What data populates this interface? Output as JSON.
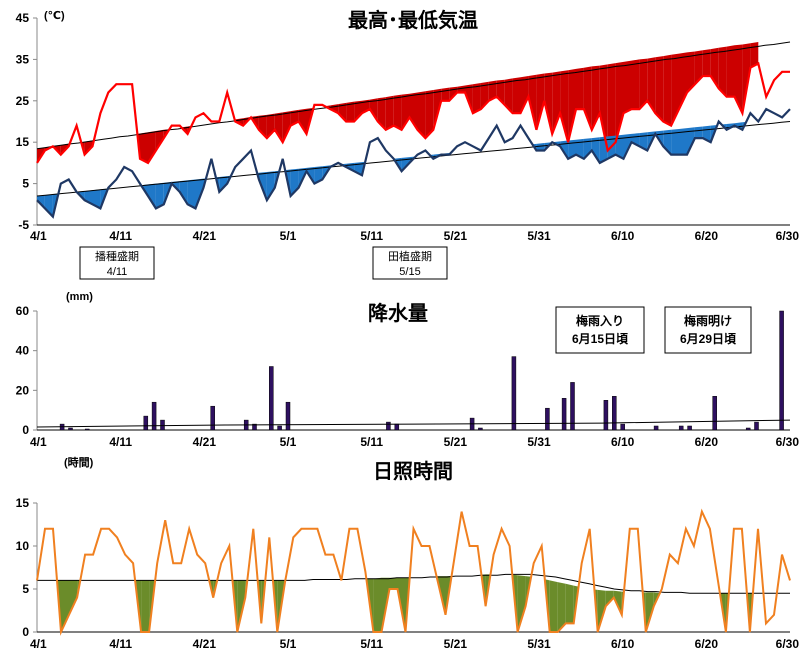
{
  "chart_data": [
    {
      "id": "temperature",
      "type": "line",
      "title": "最高･最低気温",
      "unit": "(℃)",
      "ylim": [
        -5,
        45
      ],
      "yticks": [
        -5,
        5,
        15,
        25,
        35,
        45
      ],
      "x_tick_labels": [
        "4/1",
        "4/11",
        "4/21",
        "5/1",
        "5/11",
        "5/21",
        "5/31",
        "6/10",
        "6/20",
        "6/30"
      ],
      "series": [
        {
          "color": "#ff0000",
          "values": [
            10,
            13,
            14,
            12,
            14,
            19,
            12,
            14,
            22,
            27,
            29,
            29,
            29,
            11,
            10,
            13,
            16,
            19,
            19,
            17,
            21,
            22,
            20,
            20,
            27,
            20,
            19,
            21,
            18,
            16,
            18,
            15,
            19,
            20,
            17,
            24,
            24,
            23,
            22,
            20,
            20,
            22,
            23,
            20,
            18,
            19,
            18,
            21,
            18,
            16,
            18,
            25,
            25,
            27,
            27,
            22,
            23,
            25,
            26,
            24,
            22,
            22,
            26,
            18,
            25,
            17,
            22,
            15,
            23,
            23,
            18,
            22,
            13,
            15,
            22,
            23,
            23,
            25,
            22,
            20,
            19,
            23,
            27,
            29,
            31,
            31,
            28,
            26,
            26,
            22,
            33,
            34,
            26,
            30,
            32,
            32
          ]
        },
        {
          "color": "#1f3864",
          "values": [
            1,
            -1,
            -3,
            5,
            6,
            3,
            1,
            0,
            -1,
            4,
            6,
            9,
            8,
            5,
            2,
            -1,
            0,
            5,
            3,
            0,
            -1,
            4,
            11,
            3,
            5,
            9,
            11,
            13,
            6,
            1,
            4,
            11,
            2,
            4,
            8,
            5,
            6,
            9,
            10,
            9,
            8,
            7,
            15,
            16,
            13,
            11,
            8,
            10,
            12,
            13,
            11,
            12,
            12,
            14,
            15,
            14,
            13,
            16,
            19,
            15,
            16,
            19,
            16,
            13,
            13,
            15,
            14,
            11,
            12,
            11,
            13,
            10,
            11,
            12,
            11,
            15,
            14,
            13,
            17,
            14,
            12,
            12,
            12,
            16,
            16,
            15,
            20,
            18,
            19,
            18,
            22,
            20,
            23,
            22,
            21,
            23
          ]
        },
        {
          "color": "#000000",
          "values": [
            13.4,
            13.7,
            14.0,
            14.3,
            14.6,
            14.8,
            15.1,
            15.4,
            15.7,
            16.0,
            16.3,
            16.5,
            16.8,
            17.1,
            17.4,
            17.7,
            18.0,
            18.2,
            18.5,
            18.8,
            19.1,
            19.4,
            19.7,
            19.9,
            20.2,
            20.5,
            20.8,
            21.1,
            21.4,
            21.6,
            21.9,
            22.2,
            22.5,
            22.8,
            23.1,
            23.3,
            23.6,
            23.9,
            24.2,
            24.5,
            24.8,
            25.0,
            25.3,
            25.6,
            25.9,
            26.2,
            26.5,
            26.7,
            27.0,
            27.3,
            27.6,
            27.9,
            28.2,
            28.4,
            28.7,
            29.0,
            29.3,
            29.6,
            29.9,
            30.1,
            30.4,
            30.7,
            31.0,
            31.3,
            31.6,
            31.8,
            32.1,
            32.4,
            32.7,
            33.0,
            33.3,
            33.5,
            33.8,
            34.1,
            34.4,
            34.7,
            35.0,
            35.2,
            35.5,
            35.8,
            36.1,
            36.4,
            36.7,
            36.9,
            37.2,
            37.5,
            37.8,
            38.1,
            38.4,
            38.6,
            38.9,
            39.2
          ]
        },
        {
          "color": "#000000",
          "values": [
            2.0,
            2.2,
            2.4,
            2.6,
            2.8,
            3.0,
            3.2,
            3.4,
            3.6,
            3.8,
            4.0,
            4.2,
            4.4,
            4.6,
            4.8,
            5.0,
            5.2,
            5.4,
            5.6,
            5.8,
            6.0,
            6.2,
            6.4,
            6.6,
            6.8,
            7.0,
            7.2,
            7.4,
            7.6,
            7.8,
            8.0,
            8.2,
            8.4,
            8.6,
            8.8,
            9.0,
            9.2,
            9.4,
            9.6,
            9.8,
            10.0,
            10.2,
            10.4,
            10.6,
            10.8,
            11.0,
            11.2,
            11.4,
            11.6,
            11.8,
            12.0,
            12.2,
            12.4,
            12.6,
            12.8,
            13.0,
            13.2,
            13.4,
            13.6,
            13.8,
            14.0,
            14.2,
            14.4,
            14.6,
            14.8,
            15.0,
            15.2,
            15.4,
            15.6,
            15.8,
            16.0,
            16.2,
            16.4,
            16.6,
            16.8,
            17.0,
            17.2,
            17.4,
            17.6,
            17.8,
            18.0,
            18.2,
            18.4,
            18.6,
            18.8,
            19.0,
            19.2,
            19.4,
            19.6,
            19.8,
            20.0
          ]
        }
      ],
      "annotations": [
        {
          "lines": [
            "播種盛期",
            "4/11"
          ]
        },
        {
          "lines": [
            "田植盛期",
            "5/15"
          ]
        }
      ]
    },
    {
      "id": "precipitation",
      "type": "bar",
      "title": "降水量",
      "unit": "(mm)",
      "ylim": [
        0,
        60
      ],
      "yticks": [
        0,
        20,
        40,
        60
      ],
      "x_tick_labels": [
        "4/1",
        "4/11",
        "4/21",
        "5/1",
        "5/11",
        "5/21",
        "5/31",
        "6/10",
        "6/20",
        "6/30"
      ],
      "bars": [
        {
          "day": 3,
          "value": 3
        },
        {
          "day": 4,
          "value": 1
        },
        {
          "day": 6,
          "value": 0.5
        },
        {
          "day": 13,
          "value": 7
        },
        {
          "day": 14,
          "value": 14
        },
        {
          "day": 15,
          "value": 5
        },
        {
          "day": 21,
          "value": 12
        },
        {
          "day": 25,
          "value": 5
        },
        {
          "day": 26,
          "value": 3
        },
        {
          "day": 28,
          "value": 32
        },
        {
          "day": 29,
          "value": 2
        },
        {
          "day": 30,
          "value": 14
        },
        {
          "day": 42,
          "value": 4
        },
        {
          "day": 43,
          "value": 3
        },
        {
          "day": 52,
          "value": 6
        },
        {
          "day": 53,
          "value": 1
        },
        {
          "day": 57,
          "value": 37
        },
        {
          "day": 61,
          "value": 11
        },
        {
          "day": 63,
          "value": 16
        },
        {
          "day": 64,
          "value": 24
        },
        {
          "day": 68,
          "value": 15
        },
        {
          "day": 69,
          "value": 17
        },
        {
          "day": 70,
          "value": 3
        },
        {
          "day": 74,
          "value": 2
        },
        {
          "day": 77,
          "value": 2
        },
        {
          "day": 78,
          "value": 2
        },
        {
          "day": 81,
          "value": 17
        },
        {
          "day": 85,
          "value": 1
        },
        {
          "day": 86,
          "value": 4
        },
        {
          "day": 89,
          "value": 60
        }
      ],
      "bar_color": "#2e1060",
      "normal": [
        1.5,
        2.5,
        3.0,
        3.5,
        5.0
      ],
      "annotations": [
        {
          "lines": [
            "梅雨入り",
            "6月15日頃"
          ]
        },
        {
          "lines": [
            "梅雨明け",
            "6月29日頃"
          ]
        }
      ]
    },
    {
      "id": "sunshine",
      "type": "line",
      "title": "日照時間",
      "unit": "(時間)",
      "ylim": [
        0,
        15
      ],
      "yticks": [
        0,
        5,
        10,
        15
      ],
      "x_tick_labels": [
        "4/1",
        "4/11",
        "4/21",
        "5/1",
        "5/11",
        "5/21",
        "5/31",
        "6/10",
        "6/20",
        "6/30"
      ],
      "series": [
        {
          "color": "#f08020",
          "values": [
            6,
            12,
            12,
            0,
            2,
            4,
            9,
            9,
            12,
            12,
            11,
            9,
            8,
            0,
            0,
            8,
            13,
            8,
            8,
            12,
            9,
            8,
            4,
            8,
            10,
            0,
            4,
            12,
            1,
            11,
            0,
            6,
            11,
            12,
            12,
            12,
            9,
            9,
            6,
            12,
            12,
            7,
            0,
            0,
            5,
            5,
            0,
            12,
            10,
            10,
            6,
            2,
            8,
            14,
            10,
            10,
            3,
            9,
            12,
            10,
            0,
            3,
            8,
            10,
            0,
            0,
            1,
            1,
            8,
            12,
            0,
            3,
            4,
            2,
            12,
            12,
            0,
            3,
            5,
            9,
            8,
            12,
            10,
            14,
            12,
            6,
            0,
            12,
            12,
            0,
            12,
            1,
            2,
            9,
            6
          ]
        },
        {
          "color": "#000000",
          "values": [
            6.0,
            6.0,
            6.0,
            6.0,
            6.0,
            6.0,
            6.0,
            6.0,
            6.0,
            6.0,
            6.0,
            6.0,
            6.0,
            6.0,
            6.0,
            6.0,
            6.0,
            6.0,
            6.0,
            6.0,
            6.0,
            6.0,
            6.0,
            6.0,
            6.0,
            6.0,
            6.0,
            6.0,
            6.0,
            6.0,
            6.0,
            6.0,
            6.0,
            6.1,
            6.1,
            6.1,
            6.1,
            6.1,
            6.2,
            6.2,
            6.2,
            6.2,
            6.2,
            6.3,
            6.3,
            6.3,
            6.3,
            6.4,
            6.4,
            6.4,
            6.5,
            6.5,
            6.5,
            6.6,
            6.6,
            6.6,
            6.7,
            6.7,
            6.7,
            6.7,
            6.6,
            6.5,
            6.4,
            6.2,
            6.0,
            5.8,
            5.6,
            5.4,
            5.2,
            5.0,
            4.9,
            4.8,
            4.8,
            4.7,
            4.7,
            4.6,
            4.6,
            4.6,
            4.5,
            4.5,
            4.5,
            4.5,
            4.5,
            4.5,
            4.5,
            4.5,
            4.5,
            4.5,
            4.5,
            4.5,
            4.5
          ]
        }
      ]
    }
  ]
}
